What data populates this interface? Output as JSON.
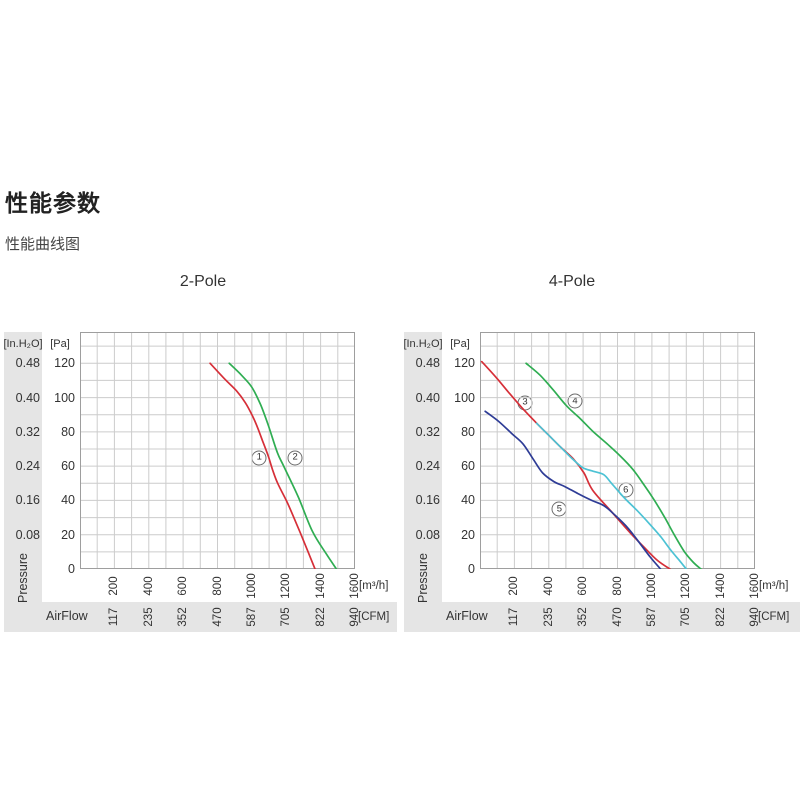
{
  "page": {
    "title": "性能参数",
    "subtitle": "性能曲线图"
  },
  "axis": {
    "pressure_label": "Pressure",
    "airflow_label": "AirFlow",
    "inh2o_header": "[In.H₂O]",
    "pa_header": "[Pa]",
    "m3h_unit": "[m³/h]",
    "cfm_unit": "[CFM]"
  },
  "chart_data": [
    {
      "type": "line",
      "title": "2-Pole",
      "xlabel": "AirFlow [m³/h] / [CFM]",
      "ylabel": "Pressure [Pa] / [In.H₂O]",
      "xlim": [
        0,
        1600
      ],
      "ylim": [
        0,
        138
      ],
      "grid": "on",
      "x_ticks_m3h": [
        "200",
        "400",
        "600",
        "800",
        "1000",
        "1200",
        "1400",
        "1600"
      ],
      "x_ticks_cfm": [
        "117",
        "235",
        "352",
        "470",
        "587",
        "705",
        "822",
        "940"
      ],
      "y_ticks_pa": [
        "120",
        "100",
        "80",
        "60",
        "40",
        "20",
        "0"
      ],
      "y_ticks_inh2o": [
        "0.48",
        "0.40",
        "0.32",
        "0.24",
        "0.16",
        "0.08"
      ],
      "series": [
        {
          "name": "1",
          "color": "#d62f38",
          "points": [
            [
              757,
              120
            ],
            [
              840,
              111
            ],
            [
              910,
              104
            ],
            [
              962,
              97
            ],
            [
              1005,
              89
            ],
            [
              1035,
              82
            ],
            [
              1065,
              74
            ],
            [
              1095,
              66
            ],
            [
              1120,
              58
            ],
            [
              1150,
              50
            ],
            [
              1205,
              39
            ],
            [
              1257,
              27
            ],
            [
              1307,
              15
            ],
            [
              1367,
              0
            ]
          ]
        },
        {
          "name": "2",
          "color": "#2fad52",
          "points": [
            [
              868,
              120
            ],
            [
              940,
              113
            ],
            [
              1000,
              106
            ],
            [
              1050,
              96
            ],
            [
              1095,
              84
            ],
            [
              1148,
              68
            ],
            [
              1185,
              60
            ],
            [
              1270,
              42
            ],
            [
              1352,
              22
            ],
            [
              1432,
              9
            ],
            [
              1492,
              0
            ]
          ]
        }
      ],
      "markers": [
        {
          "label": "1",
          "x": 1043,
          "y": 65
        },
        {
          "label": "2",
          "x": 1252,
          "y": 65
        }
      ]
    },
    {
      "type": "line",
      "title": "4-Pole",
      "xlabel": "AirFlow [m³/h] / [CFM]",
      "ylabel": "Pressure [Pa] / [In.H₂O]",
      "xlim": [
        0,
        1600
      ],
      "ylim": [
        0,
        138
      ],
      "grid": "on",
      "x_ticks_m3h": [
        "200",
        "400",
        "600",
        "800",
        "1000",
        "1200",
        "1400",
        "1600"
      ],
      "x_ticks_cfm": [
        "117",
        "235",
        "352",
        "470",
        "587",
        "705",
        "822",
        "940"
      ],
      "y_ticks_pa": [
        "120",
        "100",
        "80",
        "60",
        "40",
        "20",
        "0"
      ],
      "y_ticks_inh2o": [
        "0.48",
        "0.40",
        "0.32",
        "0.24",
        "0.16",
        "0.08"
      ],
      "series": [
        {
          "name": "3",
          "color": "#d62f38",
          "points": [
            [
              10,
              121
            ],
            [
              100,
              111
            ],
            [
              175,
              102
            ],
            [
              245,
              94
            ],
            [
              330,
              85
            ],
            [
              400,
              78
            ],
            [
              470,
              71
            ],
            [
              545,
              64
            ],
            [
              605,
              56
            ],
            [
              655,
              46
            ],
            [
              760,
              34
            ],
            [
              875,
              21
            ],
            [
              952,
              13
            ],
            [
              1032,
              5
            ],
            [
              1105,
              0
            ]
          ]
        },
        {
          "name": "4",
          "color": "#2fad52",
          "points": [
            [
              268,
              120
            ],
            [
              350,
              113
            ],
            [
              430,
              104
            ],
            [
              505,
              95
            ],
            [
              580,
              88
            ],
            [
              660,
              80
            ],
            [
              740,
              73
            ],
            [
              815,
              66
            ],
            [
              890,
              58
            ],
            [
              955,
              49
            ],
            [
              1015,
              40
            ],
            [
              1075,
              30
            ],
            [
              1130,
              20
            ],
            [
              1190,
              10
            ],
            [
              1240,
              4
            ],
            [
              1285,
              0
            ]
          ]
        },
        {
          "name": "5",
          "color": "#2e3c96",
          "points": [
            [
              30,
              92
            ],
            [
              110,
              86
            ],
            [
              185,
              79
            ],
            [
              250,
              73
            ],
            [
              310,
              64
            ],
            [
              365,
              56
            ],
            [
              430,
              51
            ],
            [
              495,
              48
            ],
            [
              570,
              44
            ],
            [
              650,
              40
            ],
            [
              720,
              37
            ],
            [
              790,
              31
            ],
            [
              860,
              24
            ],
            [
              930,
              15
            ],
            [
              990,
              7
            ],
            [
              1050,
              0
            ]
          ]
        },
        {
          "name": "6",
          "color": "#4cc2d4",
          "points": [
            [
              330,
              85
            ],
            [
              400,
              78
            ],
            [
              470,
              71
            ],
            [
              540,
              64
            ],
            [
              600,
              59
            ],
            [
              660,
              57
            ],
            [
              720,
              55
            ],
            [
              765,
              50
            ],
            [
              835,
              42
            ],
            [
              915,
              34
            ],
            [
              980,
              27
            ],
            [
              1050,
              19
            ],
            [
              1110,
              11
            ],
            [
              1160,
              5
            ],
            [
              1200,
              0
            ]
          ]
        }
      ],
      "markers": [
        {
          "label": "3",
          "x": 262,
          "y": 97
        },
        {
          "label": "4",
          "x": 553,
          "y": 98
        },
        {
          "label": "5",
          "x": 462,
          "y": 35
        },
        {
          "label": "6",
          "x": 848,
          "y": 46
        }
      ]
    }
  ]
}
